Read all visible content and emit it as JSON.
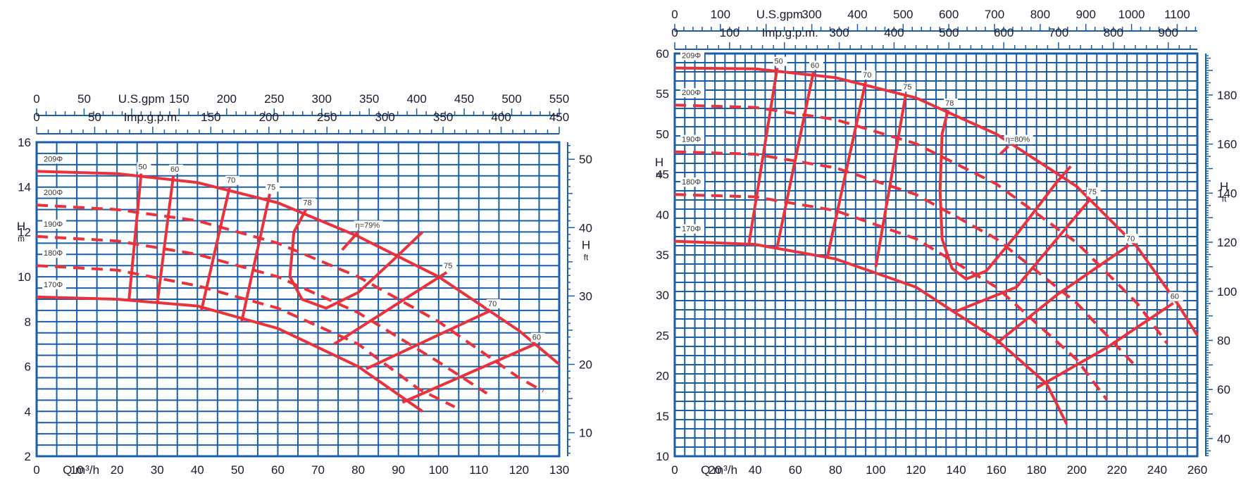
{
  "style": {
    "grid_color": "#1a5ea8",
    "curve_color": "#e8323c",
    "text_color": "#1a1a2e"
  },
  "chart_data": [
    {
      "type": "line",
      "xlabel": "Q m³/h",
      "ylabel_left": "H m",
      "ylabel_right": "H ft",
      "xlim": [
        0,
        130
      ],
      "ylim": [
        2,
        16
      ],
      "ftlim": [
        6.56,
        52.49
      ],
      "grid": true,
      "x_ticks": [
        "0",
        "10",
        "20",
        "30",
        "40",
        "50",
        "60",
        "70",
        "80",
        "90",
        "100",
        "110",
        "120",
        "130"
      ],
      "y_ticks": [
        "2",
        "4",
        "6",
        "8",
        "10",
        "12",
        "14",
        "16"
      ],
      "ft_ticks": [
        "10",
        "20",
        "30",
        "40",
        "50"
      ],
      "top_axes": [
        {
          "label": "U.S.gpm",
          "max": 550,
          "ticks": [
            "0",
            "50",
            "150",
            "200",
            "250",
            "300",
            "350",
            "400",
            "450",
            "500",
            "550"
          ]
        },
        {
          "label": "Imp.g.p.m.",
          "max": 450,
          "ticks": [
            "0",
            "50",
            "150",
            "200",
            "250",
            "300",
            "350",
            "400",
            "450"
          ]
        }
      ],
      "impellers": [
        {
          "name": "209Φ",
          "points": [
            [
              0,
              14.7
            ],
            [
              20,
              14.6
            ],
            [
              40,
              14.2
            ],
            [
              60,
              13.3
            ],
            [
              80,
              11.8
            ],
            [
              100,
              10.0
            ],
            [
              120,
              7.6
            ],
            [
              130,
              6.1
            ]
          ]
        },
        {
          "name": "200Φ",
          "points": [
            [
              0,
              13.2
            ],
            [
              20,
              13.0
            ],
            [
              40,
              12.5
            ],
            [
              60,
              11.5
            ],
            [
              80,
              10.0
            ],
            [
              100,
              8.0
            ],
            [
              120,
              5.5
            ],
            [
              126,
              4.9
            ]
          ]
        },
        {
          "name": "190Φ",
          "points": [
            [
              0,
              11.8
            ],
            [
              20,
              11.6
            ],
            [
              40,
              11.0
            ],
            [
              60,
              10.0
            ],
            [
              80,
              8.4
            ],
            [
              100,
              6.2
            ],
            [
              112,
              4.8
            ]
          ]
        },
        {
          "name": "180Φ",
          "points": [
            [
              0,
              10.5
            ],
            [
              20,
              10.3
            ],
            [
              40,
              9.6
            ],
            [
              60,
              8.6
            ],
            [
              80,
              7.0
            ],
            [
              95,
              5.0
            ],
            [
              104,
              4.2
            ]
          ]
        },
        {
          "name": "170Φ",
          "points": [
            [
              0,
              9.1
            ],
            [
              20,
              9.0
            ],
            [
              40,
              8.7
            ],
            [
              60,
              7.7
            ],
            [
              80,
              6.0
            ],
            [
              96,
              4.0
            ]
          ]
        }
      ],
      "efficiency": [
        {
          "name": "50",
          "points": [
            [
              26,
              14.6
            ],
            [
              23,
              9.0
            ]
          ]
        },
        {
          "name": "60",
          "points": [
            [
              34,
              14.5
            ],
            [
              30,
              8.8
            ]
          ]
        },
        {
          "name": "70",
          "points": [
            [
              48,
              14.0
            ],
            [
              41,
              8.5
            ]
          ]
        },
        {
          "name": "75",
          "points": [
            [
              58,
              13.7
            ],
            [
              51,
              8.0
            ]
          ]
        },
        {
          "name": "78",
          "points": [
            [
              67,
              13.0
            ],
            [
              64,
              12.0
            ],
            [
              63,
              10.0
            ],
            [
              66,
              9.0
            ],
            [
              72,
              8.6
            ],
            [
              80,
              9.3
            ],
            [
              89,
              10.8
            ],
            [
              96,
              12.0
            ]
          ]
        },
        {
          "name": "η=79%",
          "points": [
            [
              80,
              12.0
            ],
            [
              76,
              11.2
            ]
          ]
        },
        {
          "name": "75",
          "points": [
            [
              102,
              10.2
            ],
            [
              74,
              7.0
            ]
          ]
        },
        {
          "name": "70",
          "points": [
            [
              113,
              8.5
            ],
            [
              82,
              5.9
            ]
          ]
        },
        {
          "name": "60",
          "points": [
            [
              124,
              7.0
            ],
            [
              91,
              4.4
            ]
          ]
        }
      ]
    },
    {
      "type": "line",
      "xlabel": "Q m³/h",
      "ylabel_left": "H m",
      "ylabel_right": "H ft",
      "xlim": [
        0,
        260
      ],
      "ylim": [
        10,
        60
      ],
      "ftlim": [
        32.8,
        196.9
      ],
      "grid": true,
      "x_ticks": [
        "0",
        "20",
        "40",
        "60",
        "80",
        "100",
        "120",
        "140",
        "160",
        "180",
        "200",
        "220",
        "240",
        "260"
      ],
      "y_ticks": [
        "10",
        "15",
        "20",
        "25",
        "30",
        "35",
        "40",
        "45",
        "50",
        "55",
        "60"
      ],
      "ft_ticks": [
        "40",
        "60",
        "80",
        "100",
        "120",
        "140",
        "160",
        "180"
      ],
      "top_axes": [
        {
          "label": "U.S.gpm",
          "max": 1144,
          "ticks": [
            "0",
            "100",
            "300",
            "400",
            "500",
            "600",
            "700",
            "800",
            "900",
            "1000",
            "1100"
          ]
        },
        {
          "label": "Imp.g.p.m.",
          "max": 953,
          "ticks": [
            "0",
            "100",
            "300",
            "400",
            "500",
            "600",
            "700",
            "800",
            "900"
          ]
        }
      ],
      "impellers": [
        {
          "name": "209Φ",
          "points": [
            [
              0,
              58.2
            ],
            [
              40,
              58.1
            ],
            [
              80,
              57.0
            ],
            [
              120,
              54.5
            ],
            [
              160,
              50.0
            ],
            [
              200,
              43.5
            ],
            [
              230,
              36.0
            ],
            [
              250,
              29.0
            ],
            [
              260,
              25.0
            ]
          ]
        },
        {
          "name": "200Φ",
          "points": [
            [
              0,
              53.6
            ],
            [
              40,
              53.3
            ],
            [
              80,
              51.8
            ],
            [
              120,
              48.8
            ],
            [
              160,
              43.8
            ],
            [
              200,
              36.5
            ],
            [
              230,
              29.0
            ],
            [
              245,
              24.0
            ]
          ]
        },
        {
          "name": "190Φ",
          "points": [
            [
              0,
              47.8
            ],
            [
              40,
              47.5
            ],
            [
              80,
              45.8
            ],
            [
              120,
              42.5
            ],
            [
              160,
              37.0
            ],
            [
              200,
              29.0
            ],
            [
              230,
              21.0
            ]
          ]
        },
        {
          "name": "180Φ",
          "points": [
            [
              0,
              42.5
            ],
            [
              40,
              42.2
            ],
            [
              80,
              40.5
            ],
            [
              120,
              37.0
            ],
            [
              160,
              31.0
            ],
            [
              200,
              22.0
            ],
            [
              215,
              17.0
            ]
          ]
        },
        {
          "name": "170Φ",
          "points": [
            [
              0,
              36.7
            ],
            [
              40,
              36.3
            ],
            [
              80,
              34.5
            ],
            [
              120,
              31.0
            ],
            [
              160,
              24.5
            ],
            [
              185,
              19.0
            ],
            [
              195,
              14.0
            ]
          ]
        }
      ],
      "efficiency": [
        {
          "name": "50",
          "points": [
            [
              51,
              58.2
            ],
            [
              37,
              36.5
            ]
          ]
        },
        {
          "name": "60",
          "points": [
            [
              69,
              57.7
            ],
            [
              51,
              36.0
            ]
          ]
        },
        {
          "name": "70",
          "points": [
            [
              95,
              56.5
            ],
            [
              76,
              34.8
            ]
          ]
        },
        {
          "name": "75",
          "points": [
            [
              115,
              55.0
            ],
            [
              100,
              33.5
            ]
          ]
        },
        {
          "name": "78",
          "points": [
            [
              136,
              53.0
            ],
            [
              133,
              50.0
            ],
            [
              132,
              43.0
            ],
            [
              133,
              37.0
            ],
            [
              138,
              33.3
            ],
            [
              145,
              32.0
            ],
            [
              155,
              33.0
            ],
            [
              170,
              37.5
            ],
            [
              190,
              44.0
            ],
            [
              197,
              46.0
            ]
          ]
        },
        {
          "name": "η=80%",
          "points": [
            [
              166,
              48.5
            ],
            [
              162,
              47.5
            ]
          ]
        },
        {
          "name": "75",
          "points": [
            [
              207,
              42.0
            ],
            [
              170,
              31.0
            ],
            [
              140,
              28.0
            ]
          ]
        },
        {
          "name": "70",
          "points": [
            [
              226,
              36.2
            ],
            [
              190,
              30.0
            ],
            [
              160,
              24.0
            ]
          ]
        },
        {
          "name": "60",
          "points": [
            [
              248,
              29.0
            ],
            [
              215,
              23.5
            ],
            [
              180,
              18.5
            ]
          ]
        }
      ]
    }
  ],
  "charts": [
    {
      "title_ylabel": "H",
      "title_yunit": "m",
      "title_ftlabel": "H",
      "title_ftunit": "ft",
      "xlabel": "Q m³/h",
      "top1_label": "U.S.gpm",
      "top2_label": "Imp.g.p.m."
    },
    {
      "title_ylabel": "H",
      "title_yunit": "m",
      "title_ftlabel": "H",
      "title_ftunit": "ft",
      "xlabel": "Q m³/h",
      "top1_label": "U.S.gpm",
      "top2_label": "Imp.g.p.m."
    }
  ]
}
